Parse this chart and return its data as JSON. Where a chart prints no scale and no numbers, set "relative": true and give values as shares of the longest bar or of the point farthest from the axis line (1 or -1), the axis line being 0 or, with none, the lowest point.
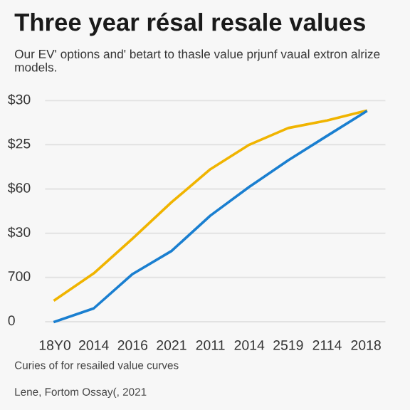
{
  "chart_data": {
    "type": "line",
    "title": "Three year résal resale values",
    "subtitle": "Our EV' options and' betart to thasle value prjunf vaual extron alrize models.",
    "categories": [
      "18Y0",
      "2014",
      "2016",
      "2021",
      "2011",
      "2014",
      "2519",
      "2114",
      "2018"
    ],
    "relative": true,
    "series": [
      {
        "color": "#f0b400",
        "values": [
          0.103,
          0.229,
          0.394,
          0.566,
          0.723,
          0.839,
          0.918,
          0.954,
          1
        ]
      },
      {
        "color": "#1a7fd0",
        "values": [
          0,
          0.063,
          0.226,
          0.335,
          0.503,
          0.639,
          0.765,
          0.881,
          0.996
        ]
      }
    ],
    "ref_lines": [
      {
        "axis": "y",
        "value": 0,
        "color": "#e2e2e2"
      },
      {
        "axis": "y",
        "value": 0.21,
        "color": "#e2e2e2"
      },
      {
        "axis": "y",
        "value": 0.419,
        "color": "#e2e2e2"
      },
      {
        "axis": "y",
        "value": 0.629,
        "color": "#e2e2e2"
      },
      {
        "axis": "y",
        "value": 0.839,
        "color": "#e2e2e2"
      },
      {
        "axis": "y",
        "value": 1.048,
        "color": "#e2e2e2"
      }
    ],
    "annotations": [
      "0",
      "700",
      "$30",
      "$60",
      "$25",
      "$30",
      "Curies of for resailed value curves",
      "Lene, Fortom Ossay(, 2021"
    ]
  }
}
